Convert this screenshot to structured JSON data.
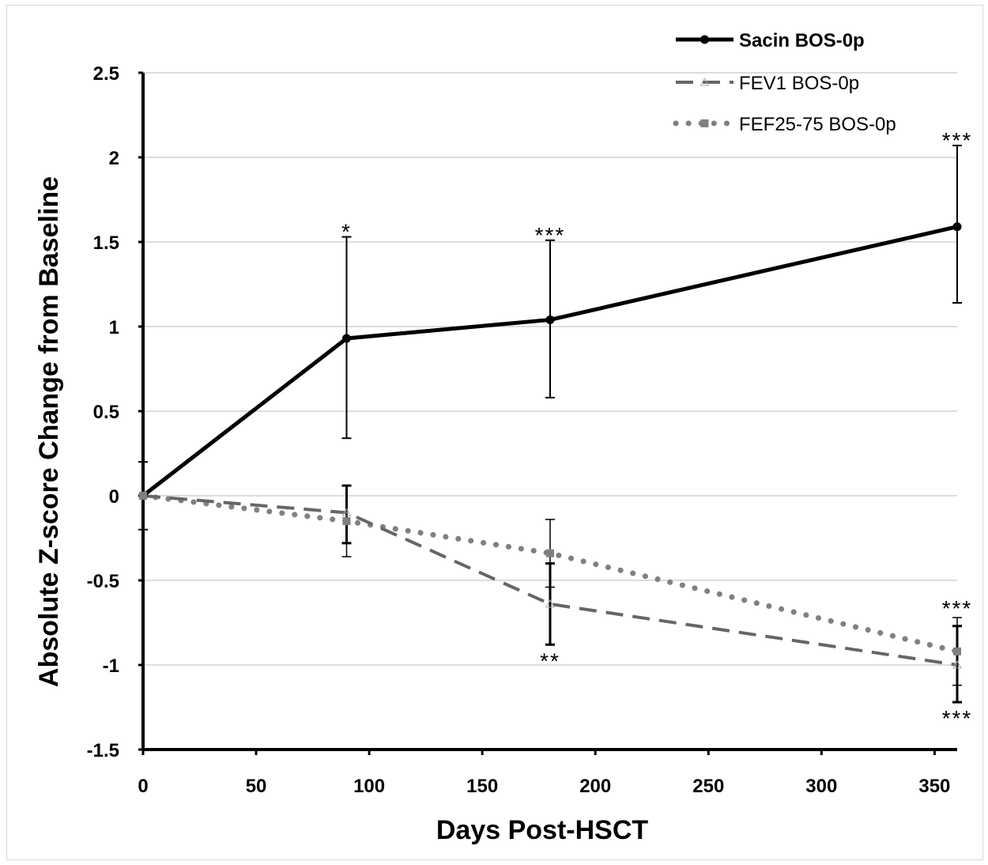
{
  "chart_data": {
    "type": "line",
    "xlabel": "Days Post-HSCT",
    "ylabel": "Absolute Z-score Change from Baseline",
    "xlim": [
      0,
      360
    ],
    "ylim": [
      -1.5,
      2.5
    ],
    "x_ticks": [
      "0",
      "50",
      "100",
      "150",
      "200",
      "250",
      "300",
      "350"
    ],
    "y_ticks": [
      "2.5",
      "2",
      "1.5",
      "1",
      "0.5",
      "0",
      "-0.5",
      "-1",
      "-1.5"
    ],
    "grid": "horizontal",
    "legend_position": "top-right",
    "series": [
      {
        "name": "Sacin BOS-0p",
        "color": "#000000",
        "style": "solid",
        "marker": "circle",
        "x": [
          0,
          90,
          180,
          360
        ],
        "y": [
          0,
          0.93,
          1.04,
          1.59
        ],
        "err_low": [
          -0.2,
          0.34,
          0.58,
          1.14
        ],
        "err_high": [
          0.2,
          1.53,
          1.51,
          2.07
        ],
        "significance": [
          "",
          "*",
          "***",
          "***"
        ]
      },
      {
        "name": "FEV1 BOS-0p",
        "color": "#666666",
        "style": "dashed",
        "marker": "triangle",
        "x": [
          0,
          90,
          180,
          360
        ],
        "y": [
          0,
          -0.1,
          -0.64,
          -1.0
        ],
        "err_low": [
          0,
          -0.28,
          -0.88,
          -1.22
        ],
        "err_high": [
          0,
          0.06,
          -0.4,
          -0.77
        ],
        "significance": [
          "",
          "",
          "**",
          "***"
        ]
      },
      {
        "name": "FEF25-75 BOS-0p",
        "color": "#808080",
        "style": "dotted",
        "marker": "square",
        "x": [
          0,
          90,
          180,
          360
        ],
        "y": [
          0,
          -0.15,
          -0.34,
          -0.92
        ],
        "err_low": [
          0,
          -0.36,
          -0.54,
          -1.12
        ],
        "err_high": [
          0,
          0.06,
          -0.14,
          -0.72
        ],
        "significance": [
          "",
          "",
          "",
          "***"
        ]
      }
    ]
  }
}
